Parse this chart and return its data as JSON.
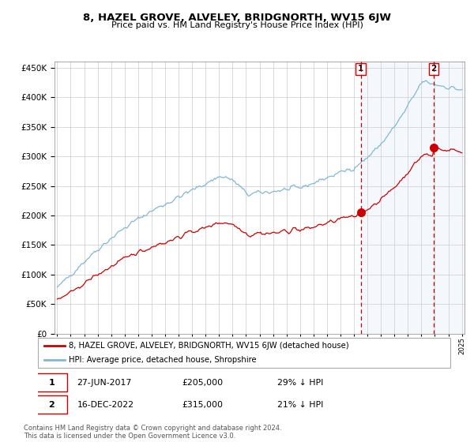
{
  "title": "8, HAZEL GROVE, ALVELEY, BRIDGNORTH, WV15 6JW",
  "subtitle": "Price paid vs. HM Land Registry's House Price Index (HPI)",
  "ylim": [
    0,
    460000
  ],
  "yticks": [
    0,
    50000,
    100000,
    150000,
    200000,
    250000,
    300000,
    350000,
    400000,
    450000
  ],
  "hpi_color": "#7fb8d8",
  "price_color": "#cc0000",
  "sale1_date": "27-JUN-2017",
  "sale1_price": 205000,
  "sale1_label": "29% ↓ HPI",
  "sale2_date": "16-DEC-2022",
  "sale2_price": 315000,
  "sale2_label": "21% ↓ HPI",
  "legend_line1": "8, HAZEL GROVE, ALVELEY, BRIDGNORTH, WV15 6JW (detached house)",
  "legend_line2": "HPI: Average price, detached house, Shropshire",
  "footer": "Contains HM Land Registry data © Crown copyright and database right 2024.\nThis data is licensed under the Open Government Licence v3.0.",
  "xstart_year": 1995,
  "xend_year": 2025
}
